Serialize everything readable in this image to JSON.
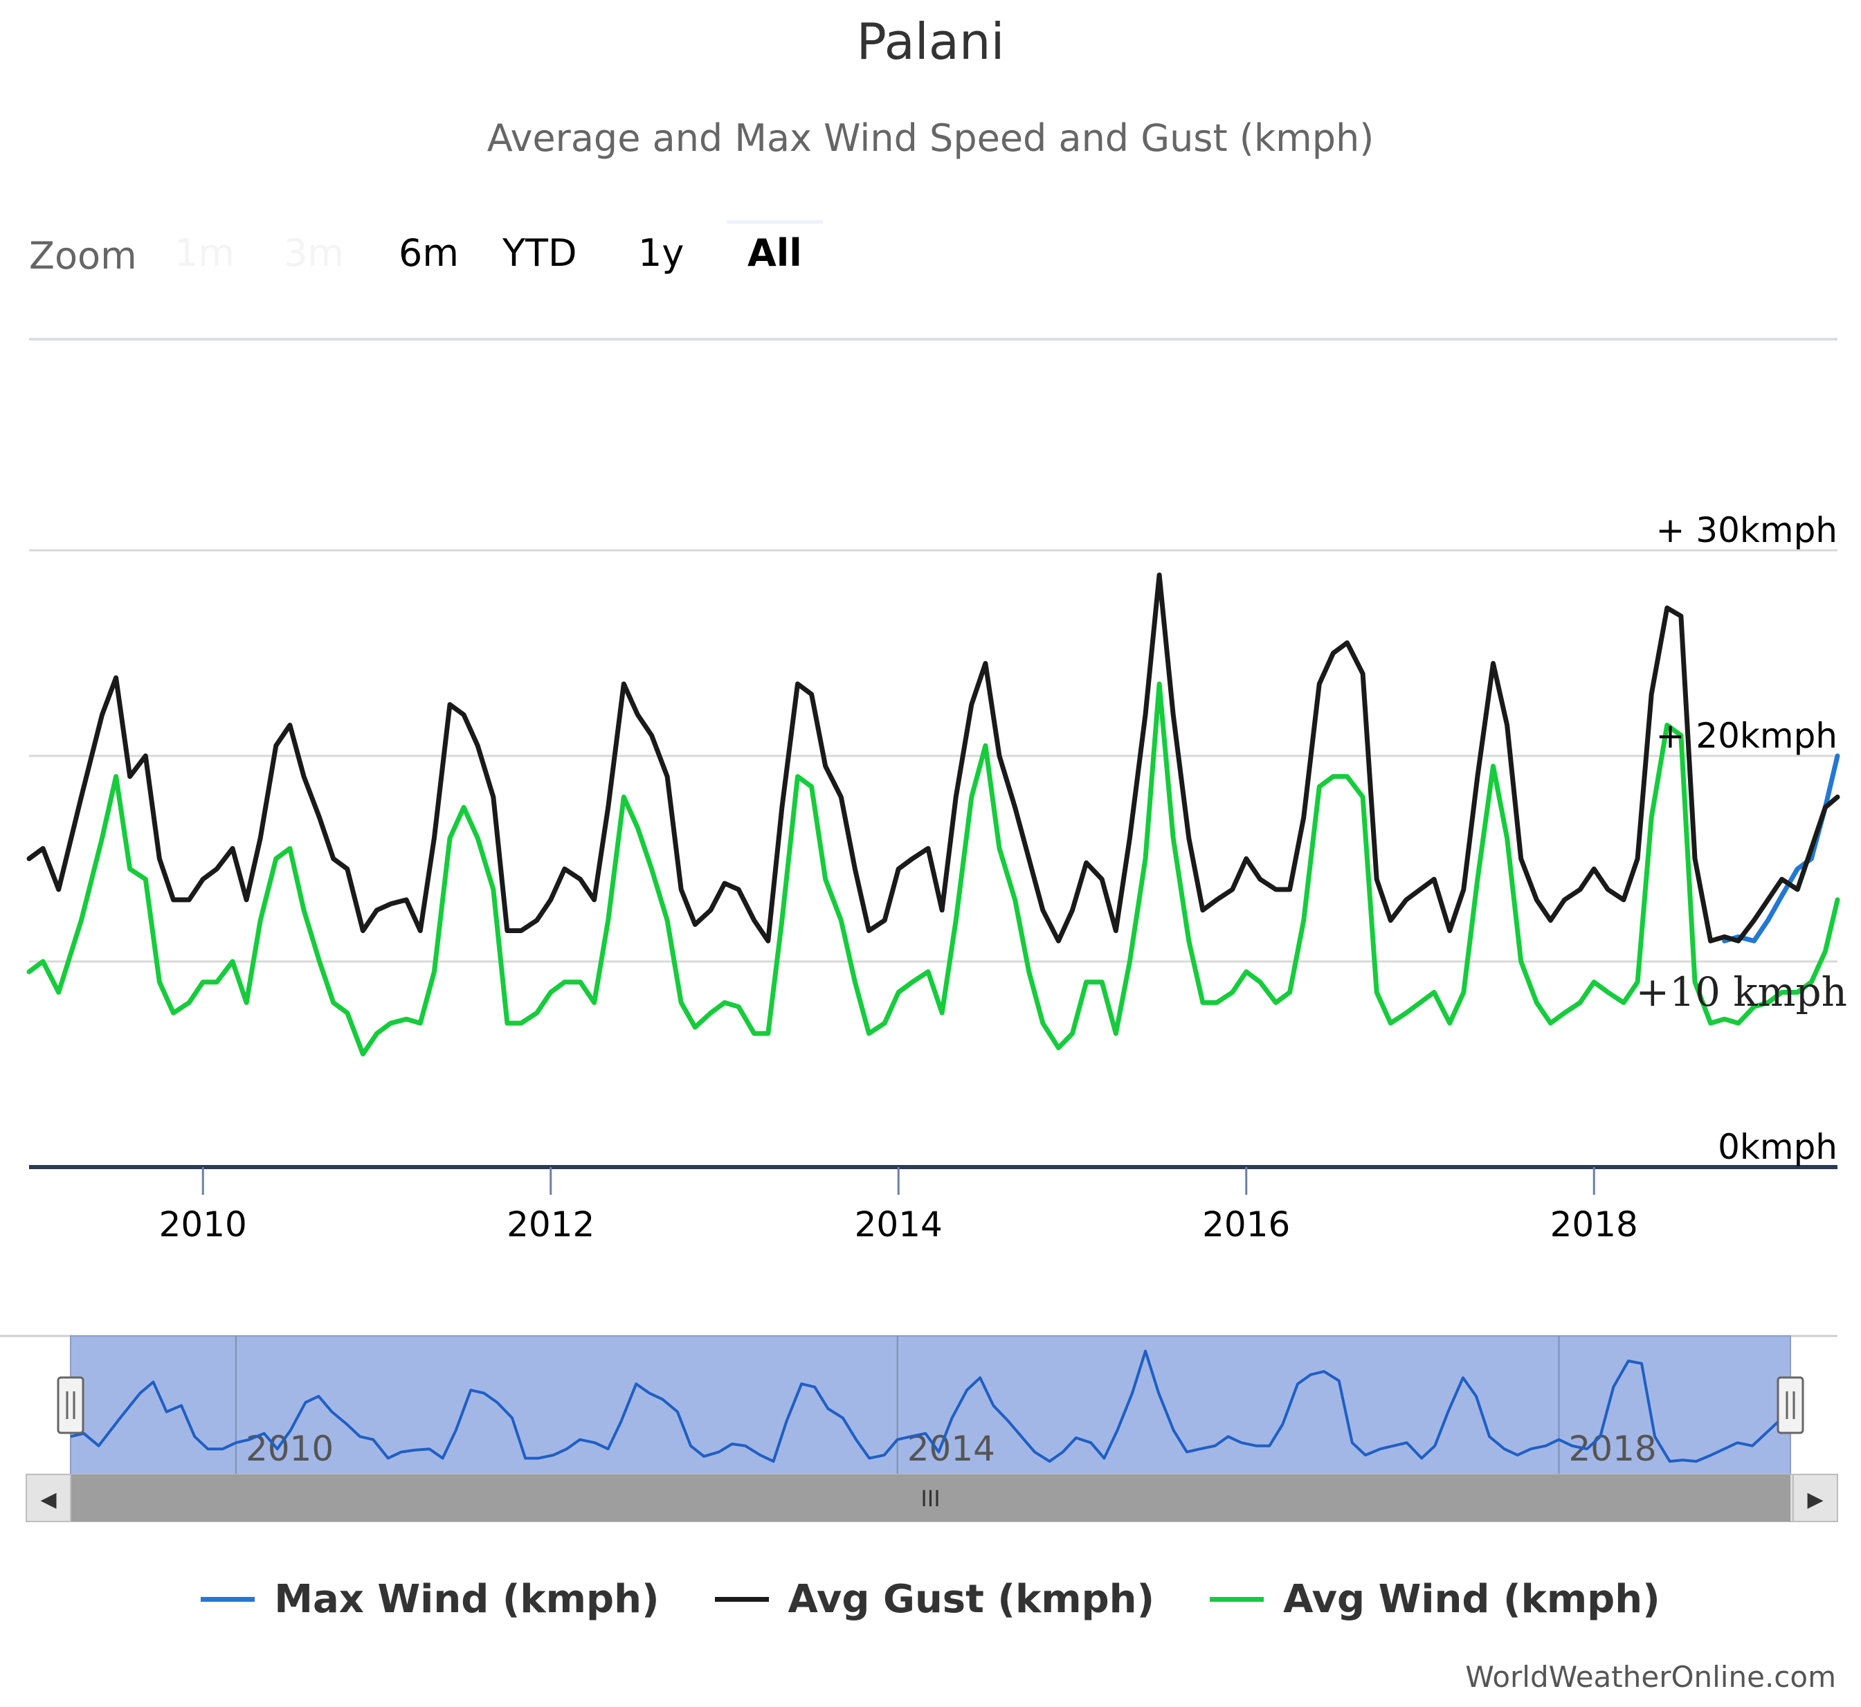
{
  "chart_data": {
    "type": "line",
    "title": "Palani",
    "subtitle": "Average and Max Wind Speed and Gust (kmph)",
    "y_tick_labels": [
      "0kmph",
      "+10 kmph",
      "+ 20kmph",
      "+ 30kmph"
    ],
    "y_tick_values": [
      0,
      10,
      20,
      30
    ],
    "ylim": [
      0,
      30
    ],
    "x_range": [
      2009.0,
      2019.4
    ],
    "x_tick_labels": [
      "2010",
      "2012",
      "2014",
      "2016",
      "2018"
    ],
    "x_tick_values": [
      2010,
      2012,
      2014,
      2016,
      2018
    ],
    "grid": true,
    "legend_position": "bottom",
    "series": [
      {
        "name": "Avg Gust (kmph)",
        "color": "#1a1a1a",
        "x": [
          2009.0,
          2009.08,
          2009.17,
          2009.3,
          2009.42,
          2009.5,
          2009.58,
          2009.67,
          2009.75,
          2009.83,
          2009.92,
          2010.0,
          2010.08,
          2010.17,
          2010.25,
          2010.33,
          2010.42,
          2010.5,
          2010.58,
          2010.67,
          2010.75,
          2010.83,
          2010.92,
          2011.0,
          2011.08,
          2011.17,
          2011.25,
          2011.33,
          2011.42,
          2011.5,
          2011.58,
          2011.67,
          2011.75,
          2011.83,
          2011.92,
          2012.0,
          2012.08,
          2012.17,
          2012.25,
          2012.33,
          2012.42,
          2012.5,
          2012.58,
          2012.67,
          2012.75,
          2012.83,
          2012.92,
          2013.0,
          2013.08,
          2013.17,
          2013.25,
          2013.33,
          2013.42,
          2013.5,
          2013.58,
          2013.67,
          2013.75,
          2013.83,
          2013.92,
          2014.0,
          2014.08,
          2014.17,
          2014.25,
          2014.33,
          2014.42,
          2014.5,
          2014.58,
          2014.67,
          2014.75,
          2014.83,
          2014.92,
          2015.0,
          2015.08,
          2015.17,
          2015.25,
          2015.33,
          2015.42,
          2015.5,
          2015.58,
          2015.67,
          2015.75,
          2015.83,
          2015.92,
          2016.0,
          2016.08,
          2016.17,
          2016.25,
          2016.33,
          2016.42,
          2016.5,
          2016.58,
          2016.67,
          2016.75,
          2016.83,
          2016.92,
          2017.0,
          2017.08,
          2017.17,
          2017.25,
          2017.33,
          2017.42,
          2017.5,
          2017.58,
          2017.67,
          2017.75,
          2017.83,
          2017.92,
          2018.0,
          2018.08,
          2018.17,
          2018.25,
          2018.33,
          2018.42,
          2018.5,
          2018.58,
          2018.67,
          2018.75,
          2018.83,
          2018.92,
          2019.0,
          2019.08,
          2019.17,
          2019.25,
          2019.33,
          2019.4
        ],
        "values": [
          15.0,
          15.5,
          13.5,
          18.0,
          22.0,
          23.8,
          19.0,
          20.0,
          15.0,
          13.0,
          13.0,
          14.0,
          14.5,
          15.5,
          13.0,
          16.0,
          20.5,
          21.5,
          19.0,
          17.0,
          15.0,
          14.5,
          11.5,
          12.5,
          12.8,
          13.0,
          11.5,
          16.0,
          22.5,
          22.0,
          20.5,
          18.0,
          11.5,
          11.5,
          12.0,
          13.0,
          14.5,
          14.0,
          13.0,
          17.5,
          23.5,
          22.0,
          21.0,
          19.0,
          13.5,
          11.8,
          12.5,
          13.8,
          13.5,
          12.0,
          11.0,
          17.5,
          23.5,
          23.0,
          19.5,
          18.0,
          14.5,
          11.5,
          12.0,
          14.5,
          15.0,
          15.5,
          12.5,
          18.0,
          22.5,
          24.5,
          20.0,
          17.5,
          15.0,
          12.5,
          11.0,
          12.5,
          14.8,
          14.0,
          11.5,
          16.0,
          22.0,
          28.8,
          22.0,
          16.0,
          12.5,
          13.0,
          13.5,
          15.0,
          14.0,
          13.5,
          13.5,
          17.0,
          23.5,
          25.0,
          25.5,
          24.0,
          14.0,
          12.0,
          13.0,
          13.5,
          14.0,
          11.5,
          13.5,
          19.0,
          24.5,
          21.5,
          15.0,
          13.0,
          12.0,
          13.0,
          13.5,
          14.5,
          13.5,
          13.0,
          15.0,
          23.0,
          27.2,
          26.8,
          15.0,
          11.0,
          11.2,
          11.0,
          12.0,
          13.0,
          14.0,
          13.5,
          15.5,
          17.5,
          18.0
        ]
      },
      {
        "name": "Avg Wind (kmph)",
        "color": "#16cc3c",
        "x": [
          2009.0,
          2009.08,
          2009.17,
          2009.3,
          2009.42,
          2009.5,
          2009.58,
          2009.67,
          2009.75,
          2009.83,
          2009.92,
          2010.0,
          2010.08,
          2010.17,
          2010.25,
          2010.33,
          2010.42,
          2010.5,
          2010.58,
          2010.67,
          2010.75,
          2010.83,
          2010.92,
          2011.0,
          2011.08,
          2011.17,
          2011.25,
          2011.33,
          2011.42,
          2011.5,
          2011.58,
          2011.67,
          2011.75,
          2011.83,
          2011.92,
          2012.0,
          2012.08,
          2012.17,
          2012.25,
          2012.33,
          2012.42,
          2012.5,
          2012.58,
          2012.67,
          2012.75,
          2012.83,
          2012.92,
          2013.0,
          2013.08,
          2013.17,
          2013.25,
          2013.33,
          2013.42,
          2013.5,
          2013.58,
          2013.67,
          2013.75,
          2013.83,
          2013.92,
          2014.0,
          2014.08,
          2014.17,
          2014.25,
          2014.33,
          2014.42,
          2014.5,
          2014.58,
          2014.67,
          2014.75,
          2014.83,
          2014.92,
          2015.0,
          2015.08,
          2015.17,
          2015.25,
          2015.33,
          2015.42,
          2015.5,
          2015.58,
          2015.67,
          2015.75,
          2015.83,
          2015.92,
          2016.0,
          2016.08,
          2016.17,
          2016.25,
          2016.33,
          2016.42,
          2016.5,
          2016.58,
          2016.67,
          2016.75,
          2016.83,
          2016.92,
          2017.0,
          2017.08,
          2017.17,
          2017.25,
          2017.33,
          2017.42,
          2017.5,
          2017.58,
          2017.67,
          2017.75,
          2017.83,
          2017.92,
          2018.0,
          2018.08,
          2018.17,
          2018.25,
          2018.33,
          2018.42,
          2018.5,
          2018.58,
          2018.67,
          2018.75,
          2018.83,
          2018.92,
          2019.0,
          2019.08,
          2019.17,
          2019.25,
          2019.33,
          2019.4
        ],
        "values": [
          9.5,
          10.0,
          8.5,
          12.0,
          16.0,
          19.0,
          14.5,
          14.0,
          9.0,
          7.5,
          8.0,
          9.0,
          9.0,
          10.0,
          8.0,
          12.0,
          15.0,
          15.5,
          12.5,
          10.0,
          8.0,
          7.5,
          5.5,
          6.5,
          7.0,
          7.2,
          7.0,
          9.5,
          16.0,
          17.5,
          16.0,
          13.5,
          7.0,
          7.0,
          7.5,
          8.5,
          9.0,
          9.0,
          8.0,
          12.0,
          18.0,
          16.5,
          14.5,
          12.0,
          8.0,
          6.8,
          7.5,
          8.0,
          7.8,
          6.5,
          6.5,
          12.0,
          19.0,
          18.5,
          14.0,
          12.0,
          9.0,
          6.5,
          7.0,
          8.5,
          9.0,
          9.5,
          7.5,
          12.0,
          18.0,
          20.5,
          15.5,
          13.0,
          9.5,
          7.0,
          5.8,
          6.5,
          9.0,
          9.0,
          6.5,
          10.0,
          15.0,
          23.5,
          16.0,
          11.0,
          8.0,
          8.0,
          8.5,
          9.5,
          9.0,
          8.0,
          8.5,
          12.0,
          18.5,
          19.0,
          19.0,
          18.0,
          8.5,
          7.0,
          7.5,
          8.0,
          8.5,
          7.0,
          8.5,
          14.0,
          19.5,
          16.0,
          10.0,
          8.0,
          7.0,
          7.5,
          8.0,
          9.0,
          8.5,
          8.0,
          9.0,
          17.0,
          21.5,
          21.0,
          9.0,
          7.0,
          7.2,
          7.0,
          7.8,
          8.0,
          8.5,
          8.5,
          9.0,
          10.5,
          13.0
        ]
      },
      {
        "name": "Max Wind (kmph)",
        "color": "#2278d4",
        "x": [
          2018.75,
          2018.83,
          2018.92,
          2019.0,
          2019.08,
          2019.17,
          2019.25,
          2019.33,
          2019.4
        ],
        "values": [
          11.0,
          11.2,
          11.0,
          12.0,
          13.2,
          14.5,
          15.0,
          17.5,
          20.0
        ]
      }
    ],
    "navigator": {
      "x_tick_labels": [
        "2010",
        "2014",
        "2018"
      ]
    },
    "credits": "WorldWeatherOnline.com"
  },
  "zoom": {
    "label": "Zoom",
    "buttons": [
      {
        "label": "1m",
        "state": "disabled"
      },
      {
        "label": "3m",
        "state": "disabled"
      },
      {
        "label": "6m",
        "state": "normal"
      },
      {
        "label": "YTD",
        "state": "normal"
      },
      {
        "label": "1y",
        "state": "normal"
      },
      {
        "label": "All",
        "state": "active"
      }
    ]
  },
  "scrollbar": {
    "left_arrow": "◀",
    "right_arrow": "▶",
    "grip": "III"
  },
  "colors": {
    "navigator_fill": "#a3b7e6",
    "scrollbar": "#9e9e9e",
    "axis_line": "#2b3a55",
    "grid": "#d8d8d8"
  }
}
